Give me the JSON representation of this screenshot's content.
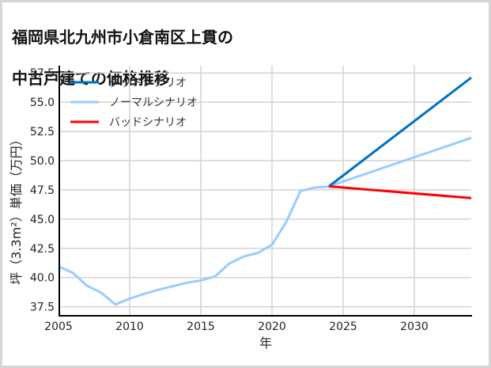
{
  "title_lines": [
    "福岡県北九州市小倉南区上貫の",
    "中古戸建ての価格推移"
  ],
  "chart_data": {
    "type": "line",
    "title": "福岡県北九州市小倉南区上貫の中古戸建ての価格推移",
    "xlabel": "年",
    "ylabel": "坪（3.3m²）単価（万円）",
    "xlim": [
      2005,
      2034
    ],
    "ylim": [
      36.8,
      58.0
    ],
    "xticks": [
      2005,
      2010,
      2015,
      2020,
      2025,
      2030
    ],
    "yticks": [
      37.5,
      40.0,
      42.5,
      45.0,
      47.5,
      50.0,
      52.5,
      55.0,
      57.5
    ],
    "ytick_labels": [
      "37.5",
      "40.0",
      "42.5",
      "45.0",
      "47.5",
      "50.0",
      "52.5",
      "55.0",
      "57.5"
    ],
    "grid": true,
    "legend_position": "upper left",
    "series": [
      {
        "name": "グッドシナリオ",
        "color": "#0070c0",
        "x": [
          2024,
          2034
        ],
        "values": [
          47.8,
          57.1
        ]
      },
      {
        "name": "ノーマルシナリオ",
        "color": "#99ccff",
        "x": [
          2005,
          2006,
          2007,
          2008,
          2009,
          2010,
          2011,
          2012,
          2013,
          2014,
          2015,
          2016,
          2017,
          2018,
          2019,
          2020,
          2021,
          2022,
          2023,
          2024,
          2034
        ],
        "values": [
          40.95,
          40.4,
          39.3,
          38.7,
          37.7,
          38.2,
          38.6,
          38.95,
          39.25,
          39.55,
          39.75,
          40.1,
          41.2,
          41.8,
          42.1,
          42.8,
          44.75,
          47.4,
          47.7,
          47.8,
          51.95
        ]
      },
      {
        "name": "バッドシナリオ",
        "color": "#ff0000",
        "x": [
          2024,
          2034
        ],
        "values": [
          47.8,
          46.8
        ]
      }
    ]
  }
}
